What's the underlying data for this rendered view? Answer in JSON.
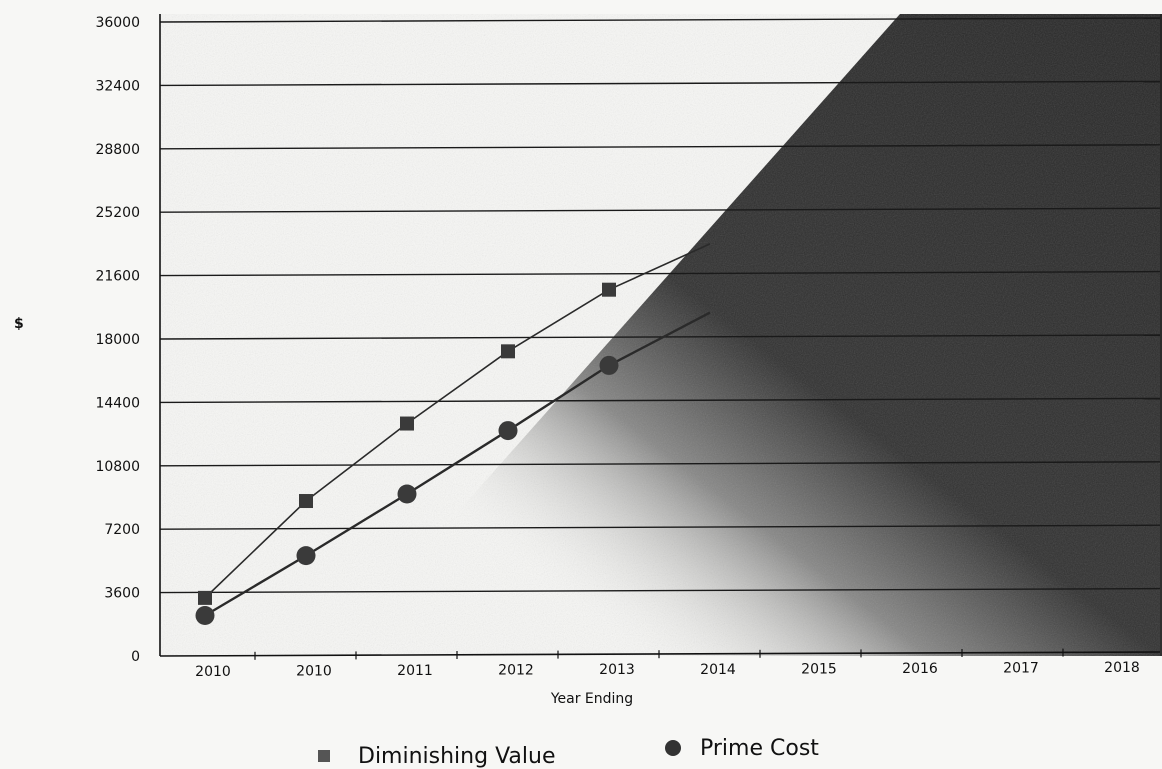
{
  "chart_data": {
    "type": "line",
    "title": "",
    "xlabel": "Year Ending",
    "ylabel": "$",
    "categories": [
      "2010",
      "2010",
      "2011",
      "2012",
      "2013",
      "2014",
      "2015",
      "2016",
      "2017",
      "2018"
    ],
    "ylim": [
      0,
      36000
    ],
    "yticks": [
      "0",
      "3600",
      "7200",
      "10800",
      "14400",
      "18000",
      "21600",
      "25200",
      "28800",
      "32400",
      "36000"
    ],
    "grid": "horizontal",
    "legend_position": "bottom",
    "series": [
      {
        "name": "Diminishing Value",
        "marker": "square",
        "color": "#3a3a3a",
        "values": [
          3300,
          8800,
          13200,
          17300,
          20800,
          23400,
          null,
          null,
          null,
          null
        ]
      },
      {
        "name": "Prime Cost",
        "marker": "circle",
        "color": "#3a3a3a",
        "values": [
          2300,
          5700,
          9200,
          12800,
          16500,
          19500,
          null,
          null,
          null,
          null
        ]
      }
    ]
  },
  "colors": {
    "background": "#f7f7f5",
    "shadow": "#2b2b2b",
    "grid": "#1a1a1a",
    "marker": "#3a3a3a"
  }
}
